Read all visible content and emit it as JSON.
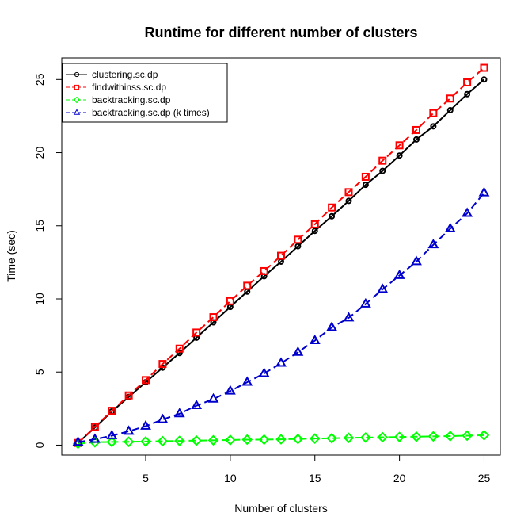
{
  "chart_data": {
    "type": "line",
    "title": "Runtime for different number of clusters",
    "xlabel": "Number of clusters",
    "ylabel": "Time (sec)",
    "xlim": [
      0.04,
      25.96
    ],
    "ylim": [
      -0.68,
      26.48
    ],
    "xticks": [
      5,
      10,
      15,
      20,
      25
    ],
    "yticks": [
      0,
      5,
      10,
      15,
      20,
      25
    ],
    "grid": false,
    "legend_position": "top-left",
    "x": [
      1,
      2,
      3,
      4,
      5,
      6,
      7,
      8,
      9,
      10,
      11,
      12,
      13,
      14,
      15,
      16,
      17,
      18,
      19,
      20,
      21,
      22,
      23,
      24,
      25
    ],
    "series": [
      {
        "name": "clustering.sc.dp",
        "color": "#000000",
        "marker": "circle",
        "dash": "solid",
        "values": [
          0.15,
          1.2,
          2.3,
          3.3,
          4.3,
          5.3,
          6.3,
          7.35,
          8.4,
          9.45,
          10.5,
          11.55,
          12.55,
          13.6,
          14.65,
          15.65,
          16.7,
          17.8,
          18.75,
          19.8,
          20.9,
          21.8,
          22.9,
          24.0,
          25.0
        ]
      },
      {
        "name": "findwithinss.sc.dp",
        "color": "#ff0000",
        "marker": "square",
        "dash": "dashed",
        "values": [
          0.15,
          1.25,
          2.35,
          3.4,
          4.45,
          5.55,
          6.6,
          7.7,
          8.75,
          9.85,
          10.9,
          11.9,
          12.95,
          14.05,
          15.1,
          16.25,
          17.3,
          18.35,
          19.45,
          20.5,
          21.55,
          22.7,
          23.7,
          24.8,
          25.8
        ]
      },
      {
        "name": "backtracking.sc.dp",
        "color": "#00ff00",
        "marker": "diamond",
        "dash": "dashed",
        "values": [
          0.1,
          0.2,
          0.22,
          0.23,
          0.25,
          0.27,
          0.29,
          0.31,
          0.33,
          0.35,
          0.38,
          0.38,
          0.4,
          0.42,
          0.45,
          0.47,
          0.5,
          0.52,
          0.54,
          0.56,
          0.58,
          0.6,
          0.62,
          0.65,
          0.68
        ]
      },
      {
        "name": "backtracking.sc.dp (k times)",
        "color": "#0000cd",
        "marker": "triangle",
        "dash": "dashed",
        "values": [
          0.2,
          0.4,
          0.65,
          0.95,
          1.3,
          1.75,
          2.15,
          2.7,
          3.15,
          3.7,
          4.3,
          4.9,
          5.6,
          6.35,
          7.15,
          8.05,
          8.7,
          9.65,
          10.65,
          11.6,
          12.55,
          13.7,
          14.8,
          15.85,
          17.25
        ]
      }
    ]
  }
}
